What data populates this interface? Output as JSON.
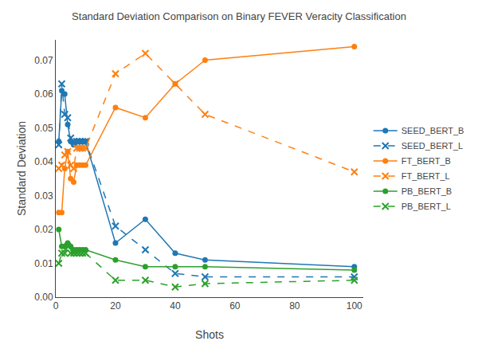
{
  "chart_data": {
    "type": "line",
    "title": "Standard Deviation Comparison on Binary FEVER Veracity Classification",
    "xlabel": "Shots",
    "ylabel": "Standard Deviation",
    "x": [
      1,
      2,
      3,
      4,
      5,
      6,
      7,
      8,
      9,
      10,
      20,
      30,
      40,
      50,
      100
    ],
    "series": [
      {
        "name": "SEED_BERT_B",
        "color": "#1f77b4",
        "marker": "circle",
        "line_style": "solid",
        "values": [
          0.046,
          0.061,
          0.06,
          0.051,
          0.046,
          0.045,
          0.046,
          0.046,
          0.046,
          0.046,
          0.016,
          0.023,
          0.013,
          0.011,
          0.009
        ]
      },
      {
        "name": "SEED_BERT_L",
        "color": "#1f77b4",
        "marker": "x",
        "line_style": "dashed",
        "values": [
          0.045,
          0.063,
          0.054,
          0.053,
          0.047,
          0.046,
          0.046,
          0.046,
          0.046,
          0.046,
          0.021,
          0.014,
          0.007,
          0.006,
          0.006
        ]
      },
      {
        "name": "FT_BERT_B",
        "color": "#ff7f0e",
        "marker": "circle",
        "line_style": "solid",
        "values": [
          0.025,
          0.025,
          0.038,
          0.043,
          0.035,
          0.034,
          0.039,
          0.039,
          0.039,
          0.039,
          0.056,
          0.053,
          0.063,
          0.07,
          0.074
        ]
      },
      {
        "name": "FT_BERT_L",
        "color": "#ff7f0e",
        "marker": "x",
        "line_style": "dashed",
        "values": [
          0.038,
          0.039,
          0.042,
          0.043,
          0.039,
          0.038,
          0.044,
          0.044,
          0.044,
          0.044,
          0.066,
          0.072,
          0.063,
          0.054,
          0.037
        ]
      },
      {
        "name": "PB_BERT_B",
        "color": "#2ca02c",
        "marker": "circle",
        "line_style": "solid",
        "values": [
          0.02,
          0.015,
          0.015,
          0.016,
          0.015,
          0.014,
          0.014,
          0.014,
          0.014,
          0.014,
          0.011,
          0.009,
          0.009,
          0.009,
          0.008
        ]
      },
      {
        "name": "PB_BERT_L",
        "color": "#2ca02c",
        "marker": "x",
        "line_style": "dashed",
        "values": [
          0.01,
          0.013,
          0.013,
          0.015,
          0.013,
          0.013,
          0.013,
          0.013,
          0.013,
          0.013,
          0.005,
          0.005,
          0.003,
          0.004,
          0.005
        ]
      }
    ],
    "xlim": [
      0,
      103
    ],
    "xticks": [
      0,
      20,
      40,
      60,
      80,
      100
    ],
    "ylim": [
      0.0,
      0.076
    ],
    "yticks": [
      {
        "value": 0.0,
        "label": "0.00"
      },
      {
        "value": 0.01,
        "label": "0.01"
      },
      {
        "value": 0.02,
        "label": "0.02"
      },
      {
        "value": 0.03,
        "label": "0.03"
      },
      {
        "value": 0.04,
        "label": "0.04"
      },
      {
        "value": 0.05,
        "label": "0.05"
      },
      {
        "value": 0.06,
        "label": "0.06"
      },
      {
        "value": 0.07,
        "label": "0.07"
      }
    ],
    "grid": false,
    "legend": "right"
  }
}
